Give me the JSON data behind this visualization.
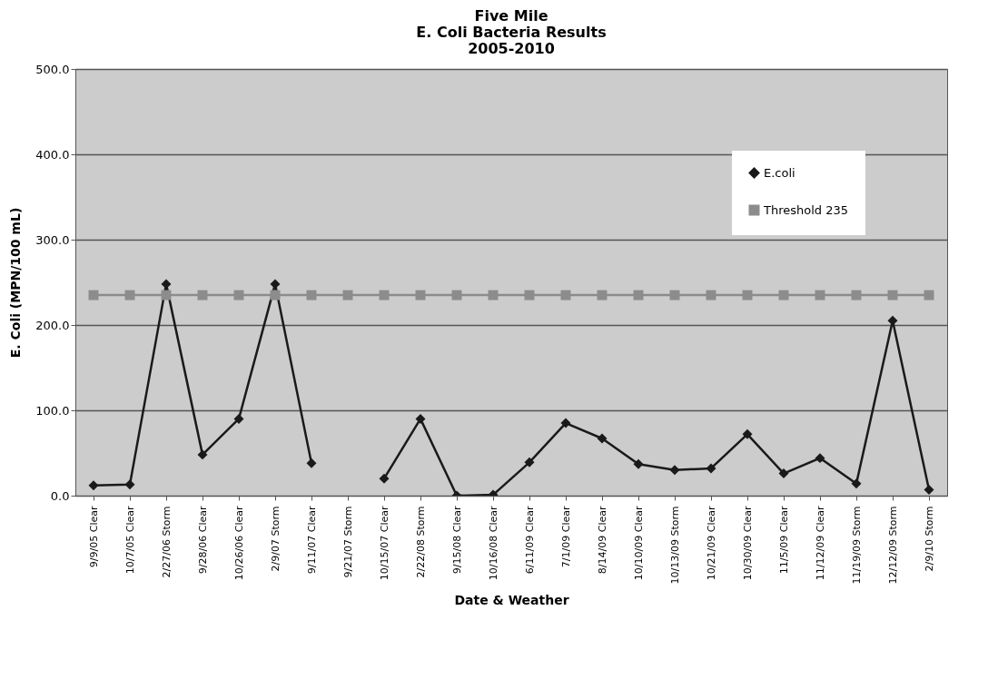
{
  "chart_data": {
    "type": "line",
    "title": "Five Mile\nE. Coli Bacteria Results\n2005-2010",
    "xlabel": "Date & Weather",
    "ylabel": "E. Coli (MPN/100 mL)",
    "categories": [
      "9/9/05 Clear",
      "10/7/05 Clear",
      "2/27/06 Storm",
      "9/28/06 Clear",
      "10/26/06 Clear",
      "2/9/07 Storm",
      "9/11/07 Clear",
      "9/21/07 Storm",
      "10/15/07 Clear",
      "2/22/08 Storm",
      "9/15/08 Clear",
      "10/16/08 Clear",
      "6/11/09 Clear",
      "7/1/09 Clear",
      "8/14/09 Clear",
      "10/10/09 Clear",
      "10/13/09 Storm",
      "10/21/09 Clear",
      "10/30/09 Clear",
      "11/5/09 Clear",
      "11/12/09 Clear",
      "11/19/09 Storm",
      "12/12/09 Storm",
      "2/9/10 Storm"
    ],
    "series": [
      {
        "name": "E.coli",
        "color": "#1a1a1a",
        "marker": "diamond",
        "values": [
          12,
          13,
          248,
          48,
          90,
          248,
          38,
          null,
          20,
          90,
          0,
          1,
          39,
          85,
          67,
          37,
          30,
          32,
          72,
          26,
          44,
          14,
          205,
          7
        ]
      },
      {
        "name": "Threshold 235",
        "color": "#8c8c8c",
        "marker": "square",
        "values": [
          235,
          235,
          235,
          235,
          235,
          235,
          235,
          235,
          235,
          235,
          235,
          235,
          235,
          235,
          235,
          235,
          235,
          235,
          235,
          235,
          235,
          235,
          235,
          235
        ]
      }
    ],
    "ylim": [
      0,
      500
    ],
    "yticks": [
      {
        "value": 0,
        "label": "0.0"
      },
      {
        "value": 100,
        "label": "100.0"
      },
      {
        "value": 200,
        "label": "200.0"
      },
      {
        "value": 300,
        "label": "300.0"
      },
      {
        "value": 400,
        "label": "400.0"
      },
      {
        "value": 500,
        "label": "500.0"
      }
    ],
    "grid": "y",
    "legend": "top right",
    "line_style": "solid"
  }
}
